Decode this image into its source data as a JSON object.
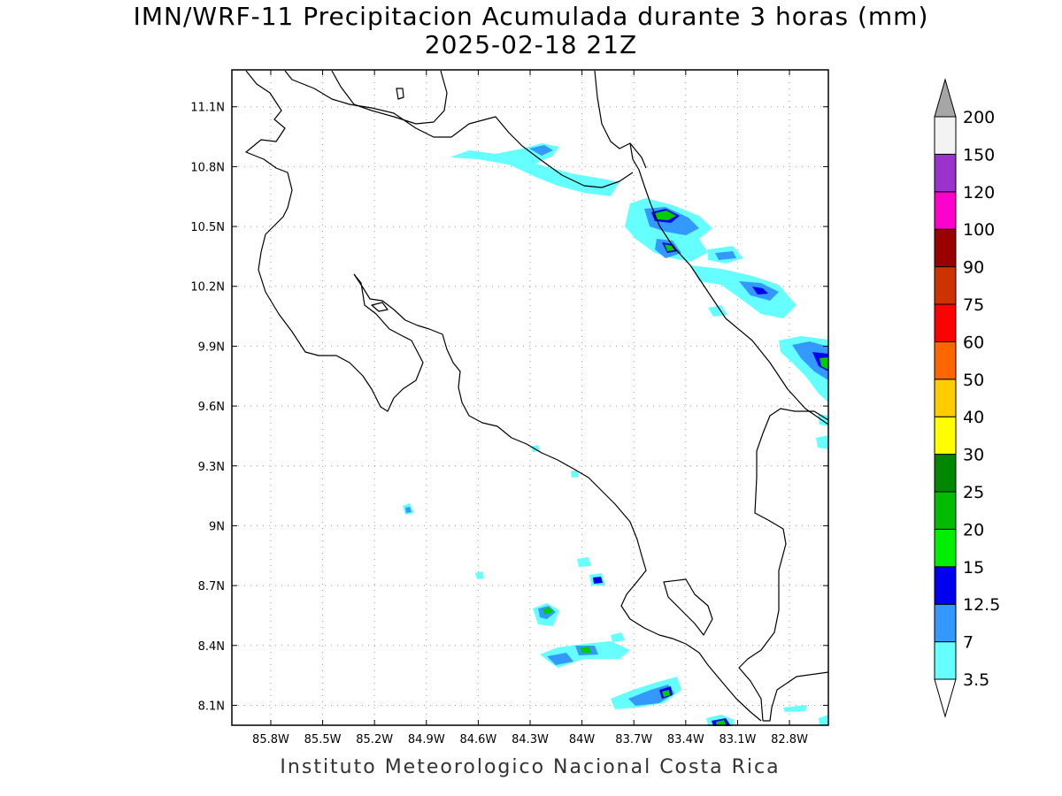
{
  "title_line1": "IMN/WRF-11 Precipitacion Acumulada durante 3 horas (mm)",
  "title_line2": "2025-02-18 21Z",
  "footer": "Instituto Meteorologico Nacional Costa Rica",
  "map": {
    "lon_range": [
      -86.025,
      -82.575
    ],
    "lat_range": [
      8.0,
      11.285
    ],
    "lon_ticks": [
      "85.8W",
      "85.5W",
      "85.2W",
      "84.9W",
      "84.6W",
      "84.3W",
      "84W",
      "83.7W",
      "83.4W",
      "83.1W",
      "82.8W"
    ],
    "lon_tick_values": [
      -85.8,
      -85.5,
      -85.2,
      -84.9,
      -84.6,
      -84.3,
      -84.0,
      -83.7,
      -83.4,
      -83.1,
      -82.8
    ],
    "lat_ticks": [
      "11.1N",
      "10.8N",
      "10.5N",
      "10.2N",
      "9.9N",
      "9.6N",
      "9.3N",
      "9N",
      "8.7N",
      "8.4N",
      "8.1N"
    ],
    "lat_tick_values": [
      11.1,
      10.8,
      10.5,
      10.2,
      9.9,
      9.6,
      9.3,
      9.0,
      8.7,
      8.4,
      8.1
    ],
    "grid": "dotted"
  },
  "legend": {
    "labels": [
      "3.5",
      "7",
      "12.5",
      "15",
      "20",
      "25",
      "30",
      "40",
      "50",
      "60",
      "75",
      "90",
      "100",
      "120",
      "150",
      "200"
    ],
    "colors": [
      "#66ffff",
      "#3399ff",
      "#0000ee",
      "#00ee00",
      "#00bb00",
      "#008800",
      "#ffff00",
      "#ffcc00",
      "#ff6600",
      "#ff0000",
      "#cc3300",
      "#990000",
      "#ff00cc",
      "#9933cc",
      "#f2f2f2",
      "#a6a6a6"
    ]
  }
}
